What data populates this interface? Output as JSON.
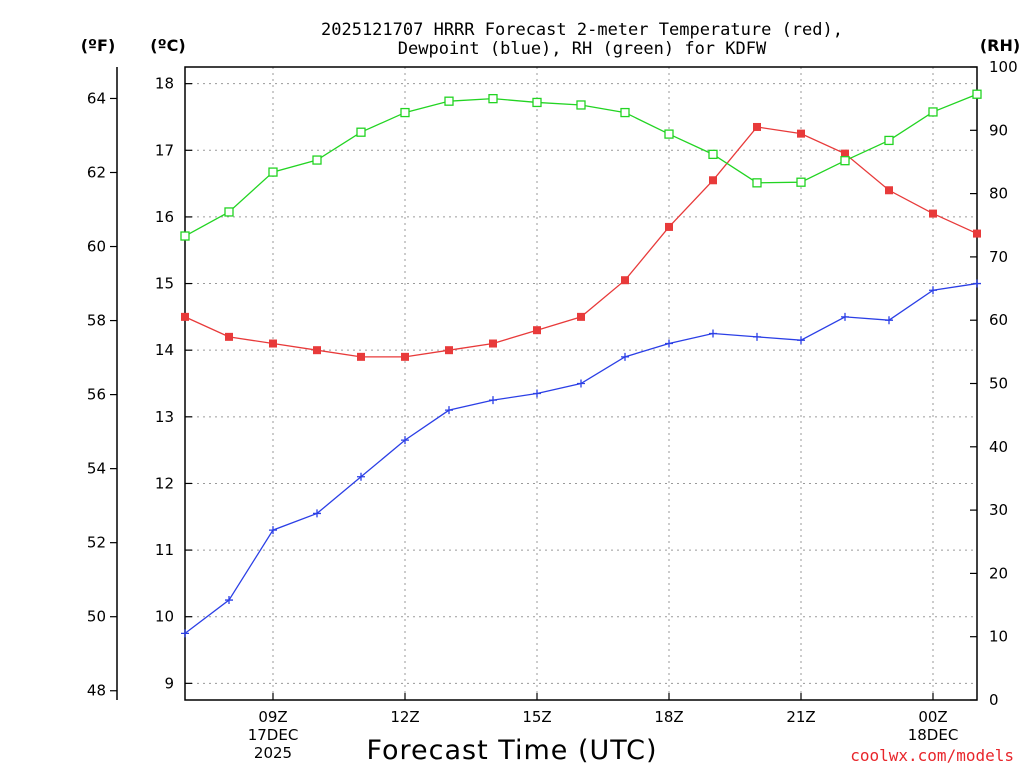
{
  "chart_data": {
    "type": "line",
    "title": [
      "2025121707 HRRR Forecast 2-meter Temperature (red),",
      "Dewpoint (blue), RH (green) for KDFW"
    ],
    "units": {
      "fahrenheit": "(ºF)",
      "celsius": "(ºC)",
      "rh": "(RH)"
    },
    "xlabel": "Forecast Time (UTC)",
    "x": [
      7,
      8,
      9,
      10,
      11,
      12,
      13,
      14,
      15,
      16,
      17,
      18,
      19,
      20,
      21,
      22,
      23,
      24,
      25
    ],
    "xlim": [
      7,
      25
    ],
    "x_ticks": [
      {
        "value": 9,
        "lines": [
          "09Z",
          "17DEC",
          "2025"
        ]
      },
      {
        "value": 12,
        "lines": [
          "12Z"
        ]
      },
      {
        "value": 15,
        "lines": [
          "15Z"
        ]
      },
      {
        "value": 18,
        "lines": [
          "18Z"
        ]
      },
      {
        "value": 21,
        "lines": [
          "21Z"
        ]
      },
      {
        "value": 24,
        "lines": [
          "00Z",
          "18DEC"
        ]
      }
    ],
    "celsius_axis": {
      "ylim": [
        8.75,
        18.25
      ],
      "ticks": [
        "9",
        "10",
        "11",
        "12",
        "13",
        "14",
        "15",
        "16",
        "17",
        "18"
      ]
    },
    "fahrenheit_axis": {
      "ylim": [
        47.75,
        64.85
      ],
      "ticks": [
        "48",
        "50",
        "52",
        "54",
        "56",
        "58",
        "60",
        "62",
        "64"
      ]
    },
    "rh_axis": {
      "ylim": [
        0,
        100
      ],
      "ticks": [
        "0",
        "10",
        "20",
        "30",
        "40",
        "50",
        "60",
        "70",
        "80",
        "90",
        "100"
      ]
    },
    "series": [
      {
        "name": "2-meter Temperature",
        "axis": "celsius",
        "color": "#e83a3a",
        "marker": "filled-square",
        "values": [
          14.5,
          14.2,
          14.1,
          14.0,
          13.9,
          13.9,
          14.0,
          14.1,
          14.3,
          14.5,
          15.05,
          15.85,
          16.55,
          17.35,
          17.25,
          16.95,
          16.4,
          16.05,
          15.75
        ]
      },
      {
        "name": "Dewpoint",
        "axis": "celsius",
        "color": "#2b3fe6",
        "marker": "plus",
        "values": [
          9.75,
          10.25,
          11.3,
          11.55,
          12.1,
          12.65,
          13.1,
          13.25,
          13.35,
          13.5,
          13.9,
          14.1,
          14.25,
          14.2,
          14.15,
          14.5,
          14.45,
          14.9,
          15.0
        ]
      },
      {
        "name": "RH",
        "axis": "rh",
        "color": "#22d422",
        "marker": "open-square",
        "values": [
          73.3,
          77.1,
          83.4,
          85.3,
          89.7,
          92.8,
          94.6,
          95.0,
          94.4,
          94.0,
          92.8,
          89.4,
          86.2,
          81.7,
          81.8,
          85.2,
          88.4,
          92.9,
          95.7
        ]
      }
    ]
  },
  "watermark": "coolwx.com/models"
}
